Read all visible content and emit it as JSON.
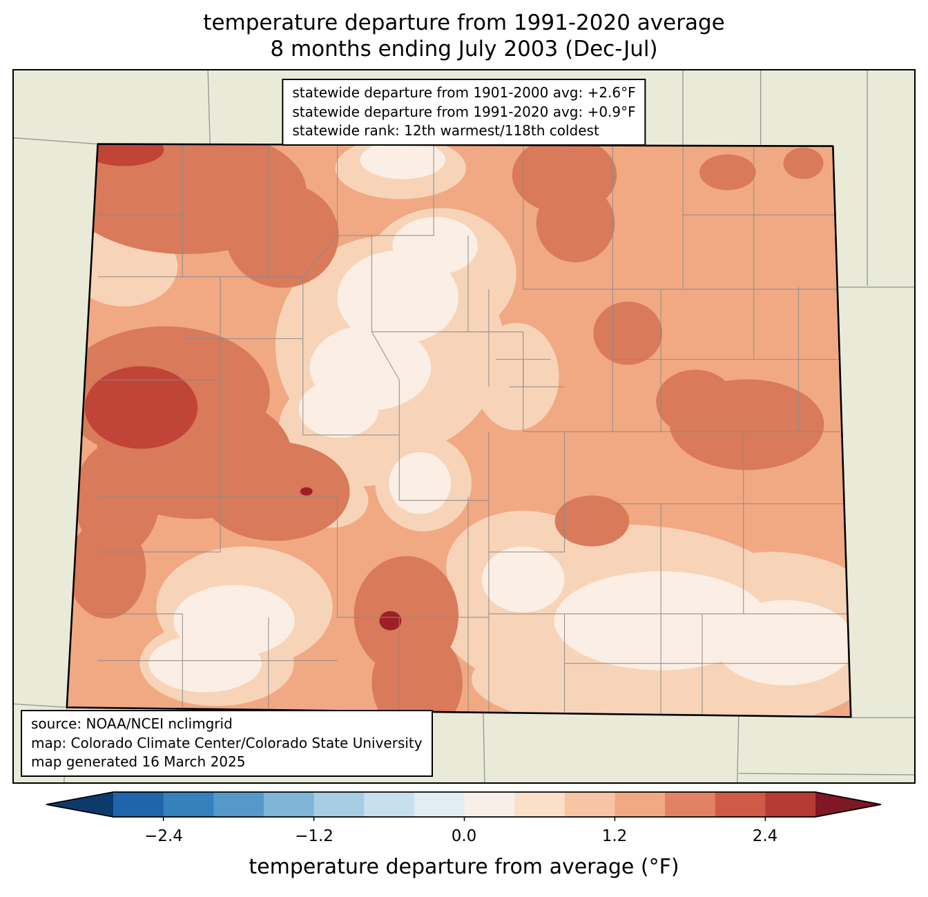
{
  "title": {
    "line1": "temperature departure from 1991-2020 average",
    "line2": "8 months ending July 2003 (Dec-Jul)"
  },
  "stats_box": {
    "lines": [
      "statewide departure from 1901-2000 avg: +2.6°F",
      "statewide departure from 1991-2020 avg: +0.9°F",
      "statewide rank: 12th warmest/118th coldest"
    ]
  },
  "source_box": {
    "lines": [
      "source: NOAA/NCEI nclimgrid",
      "map: Colorado Climate Center/Colorado State University",
      "map generated 16 March 2025"
    ]
  },
  "colorbar": {
    "axis_label": "temperature departure from average (°F)",
    "tick_labels": [
      "−2.4",
      "−1.2",
      "0.0",
      "1.2",
      "2.4"
    ],
    "tick_values": [
      -2.4,
      -1.2,
      0.0,
      1.2,
      2.4
    ],
    "range": [
      -2.8,
      2.8
    ],
    "segment_colors": [
      "#2065ab",
      "#3581bd",
      "#5599ca",
      "#7fb5d7",
      "#a7cde4",
      "#c8dfee",
      "#e2ecf3",
      "#f7efe8",
      "#fadfc9",
      "#f7c5a4",
      "#f1a983",
      "#e28263",
      "#cf5b47",
      "#b63c33"
    ],
    "left_arrow_color": "#0c3b6b",
    "right_arrow_color": "#7f1724",
    "outline_color": "#000000"
  },
  "map": {
    "region": "Colorado",
    "palette": {
      "bg": "#e9ebd8",
      "l0": "#fbeee4",
      "l1": "#f7d4b8",
      "l2": "#f1a983",
      "l3": "#d97a5a",
      "l4": "#c04438",
      "l5": "#9e1f26",
      "county": "#8a8a8a",
      "state": "#999999",
      "border": "#000000"
    }
  }
}
